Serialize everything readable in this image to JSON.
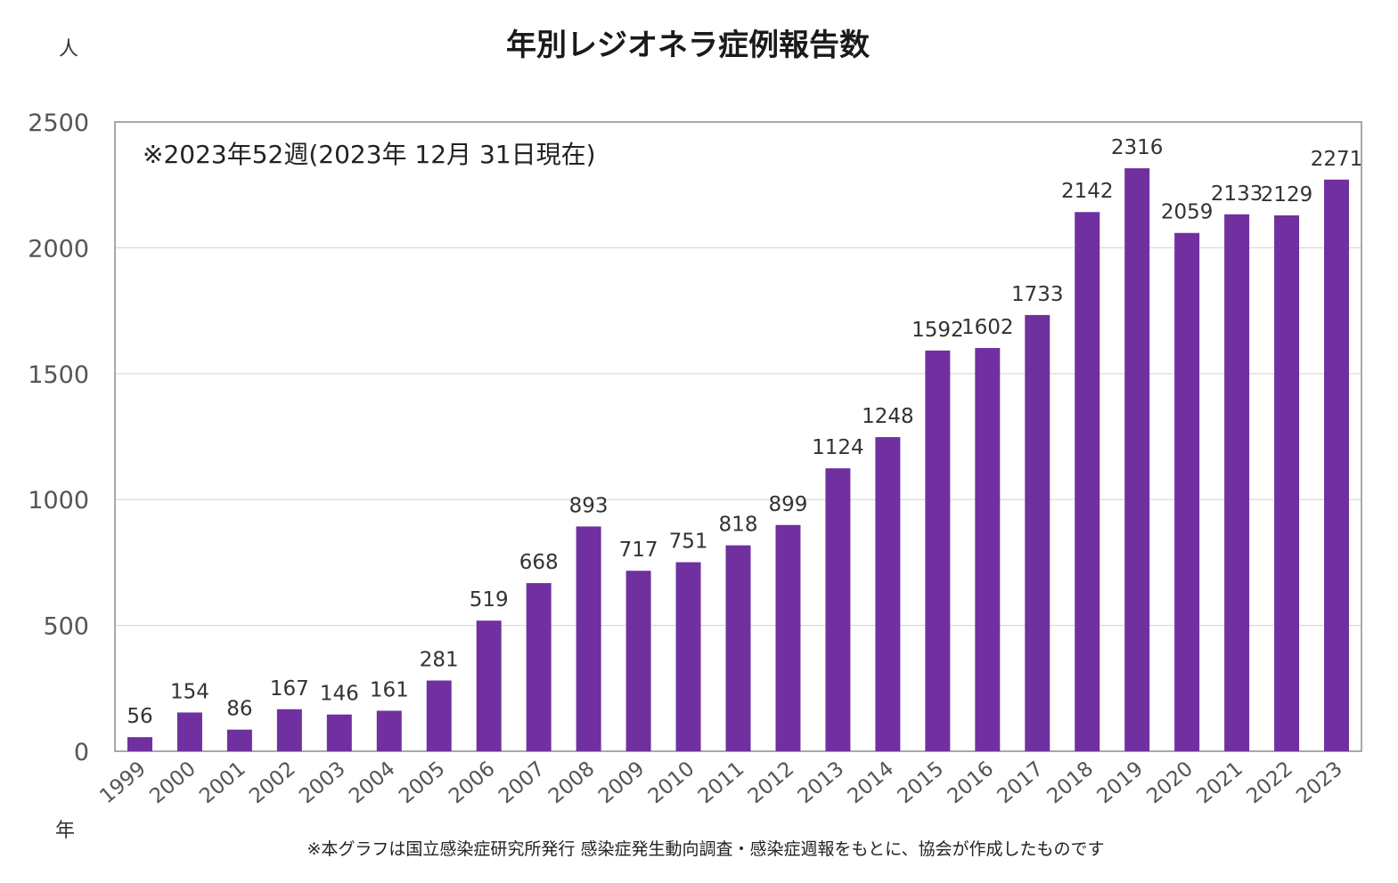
{
  "chart_data": {
    "type": "bar",
    "title": "年別レジオネラ症例報告数",
    "ylabel": "人",
    "xlabel": "年",
    "annotation": "※2023年52週(2023年 12月 31日現在)",
    "footnote": "※本グラフは国立感染症研究所発行 感染症発生動向調査・感染症週報をもとに、協会が作成したものです",
    "ylim": [
      0,
      2500
    ],
    "yticks": [
      0,
      500,
      1000,
      1500,
      2000,
      2500
    ],
    "grid": true,
    "color": "#7030a0",
    "categories": [
      "1999",
      "2000",
      "2001",
      "2002",
      "2003",
      "2004",
      "2005",
      "2006",
      "2007",
      "2008",
      "2009",
      "2010",
      "2011",
      "2012",
      "2013",
      "2014",
      "2015",
      "2016",
      "2017",
      "2018",
      "2019",
      "2020",
      "2021",
      "2022",
      "2023"
    ],
    "values": [
      56,
      154,
      86,
      167,
      146,
      161,
      281,
      519,
      668,
      893,
      717,
      751,
      818,
      899,
      1124,
      1248,
      1592,
      1602,
      1733,
      2142,
      2316,
      2059,
      2133,
      2129,
      2271
    ]
  }
}
